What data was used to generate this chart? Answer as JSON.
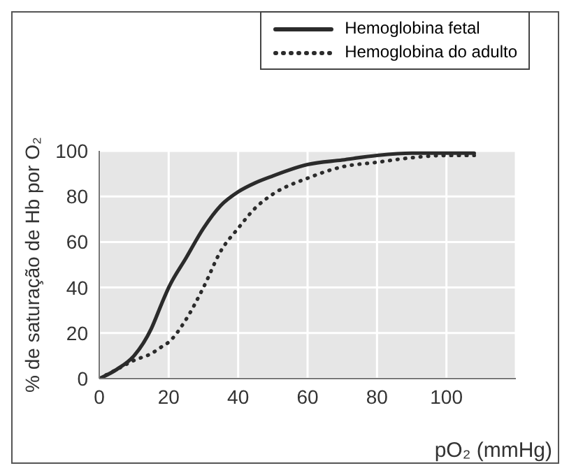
{
  "chart_data": {
    "type": "line",
    "xlabel": "pO₂ (mmHg)",
    "ylabel": "% de saturação de Hb por O₂",
    "x": [
      0,
      5,
      10,
      15,
      18,
      20,
      25,
      30,
      35,
      40,
      45,
      50,
      60,
      70,
      80,
      90,
      100,
      108
    ],
    "series": [
      {
        "name": "Hemoglobina fetal",
        "color": "#2b2b2b",
        "line_style": "solid",
        "values": [
          0,
          4,
          10,
          22,
          33,
          40,
          53,
          66,
          76,
          82,
          86,
          89,
          94,
          96,
          98,
          99,
          99,
          99
        ]
      },
      {
        "name": "Hemoglobina do adulto",
        "color": "#2b2b2b",
        "line_style": "dotted",
        "values": [
          0,
          4,
          8,
          11,
          14,
          16,
          26,
          40,
          56,
          66,
          75,
          81,
          88,
          93,
          95,
          97,
          98,
          98
        ]
      }
    ],
    "xlim": [
      0,
      120
    ],
    "xticks": [
      0,
      20,
      40,
      60,
      80,
      100
    ],
    "ylim": [
      0,
      100
    ],
    "yticks": [
      0,
      20,
      40,
      60,
      80,
      100
    ],
    "grid": true,
    "legend": "top right",
    "marker": "none"
  }
}
